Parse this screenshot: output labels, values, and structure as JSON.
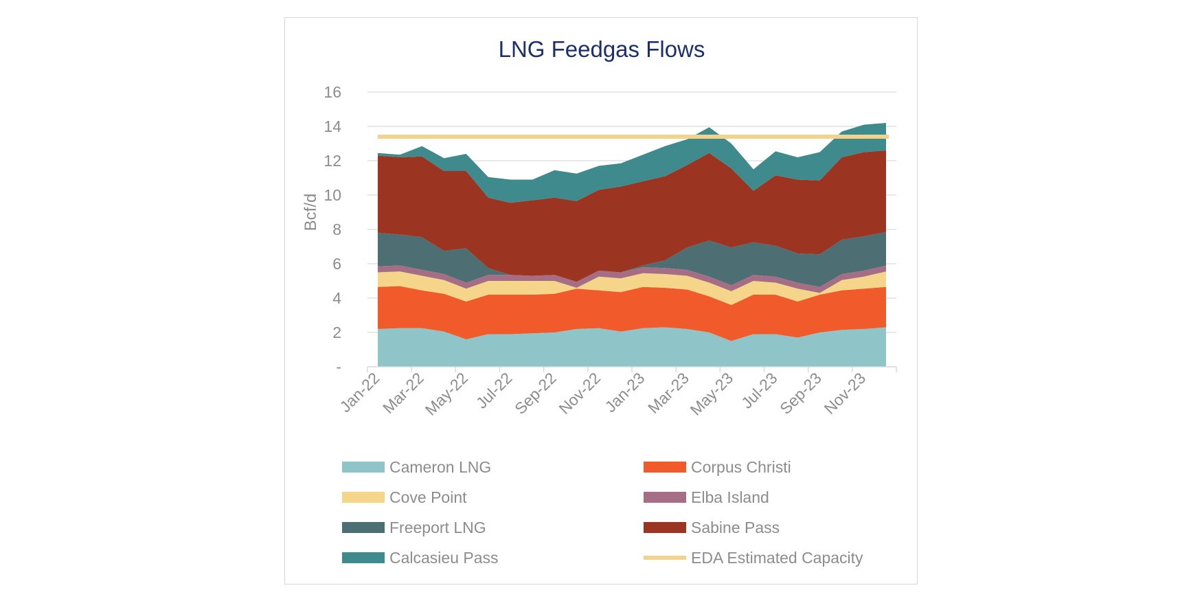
{
  "chart_data": {
    "type": "area",
    "title": "LNG Feedgas Flows",
    "ylabel": "Bcf/d",
    "xlabel": "",
    "ylim": [
      0,
      16
    ],
    "y_ticks": [
      {
        "value": 0,
        "label": "-"
      },
      {
        "value": 2,
        "label": "2"
      },
      {
        "value": 4,
        "label": "4"
      },
      {
        "value": 6,
        "label": "6"
      },
      {
        "value": 8,
        "label": "8"
      },
      {
        "value": 10,
        "label": "10"
      },
      {
        "value": 12,
        "label": "12"
      },
      {
        "value": 14,
        "label": "14"
      },
      {
        "value": 16,
        "label": "16"
      }
    ],
    "x": [
      "Jan-22",
      "Feb-22",
      "Mar-22",
      "Apr-22",
      "May-22",
      "Jun-22",
      "Jul-22",
      "Aug-22",
      "Sep-22",
      "Oct-22",
      "Nov-22",
      "Dec-22",
      "Jan-23",
      "Feb-23",
      "Mar-23",
      "Apr-23",
      "May-23",
      "Jun-23",
      "Jul-23",
      "Aug-23",
      "Sep-23",
      "Oct-23",
      "Nov-23",
      "Dec-23"
    ],
    "x_tick_labels": [
      "Jan-22",
      "Mar-22",
      "May-22",
      "Jul-22",
      "Sep-22",
      "Nov-22",
      "Jan-23",
      "Mar-23",
      "May-23",
      "Jul-23",
      "Sep-23",
      "Nov-23"
    ],
    "stacked": true,
    "grid": "horizontal",
    "legend_position": "bottom",
    "series": [
      {
        "name": "Cameron LNG",
        "color": "#8fc5c8",
        "values": [
          2.2,
          2.25,
          2.25,
          2.05,
          1.6,
          1.9,
          1.9,
          1.95,
          2.0,
          2.2,
          2.25,
          2.05,
          2.25,
          2.3,
          2.2,
          2.0,
          1.5,
          1.9,
          1.9,
          1.7,
          2.0,
          2.15,
          2.2,
          2.3
        ]
      },
      {
        "name": "Corpus Christi",
        "color": "#f15a2b",
        "values": [
          2.45,
          2.45,
          2.2,
          2.2,
          2.2,
          2.3,
          2.3,
          2.25,
          2.25,
          2.35,
          2.2,
          2.3,
          2.4,
          2.3,
          2.3,
          2.1,
          2.1,
          2.3,
          2.3,
          2.1,
          2.2,
          2.3,
          2.35,
          2.35
        ]
      },
      {
        "name": "Cove Point",
        "color": "#f5d58a",
        "values": [
          0.85,
          0.85,
          0.85,
          0.8,
          0.75,
          0.8,
          0.8,
          0.8,
          0.75,
          0.05,
          0.8,
          0.8,
          0.8,
          0.8,
          0.8,
          0.8,
          0.8,
          0.8,
          0.7,
          0.75,
          0.1,
          0.6,
          0.7,
          0.9
        ]
      },
      {
        "name": "Elba Island",
        "color": "#a66e85",
        "values": [
          0.35,
          0.35,
          0.35,
          0.35,
          0.35,
          0.35,
          0.35,
          0.3,
          0.35,
          0.35,
          0.35,
          0.35,
          0.35,
          0.35,
          0.35,
          0.35,
          0.35,
          0.35,
          0.35,
          0.35,
          0.35,
          0.35,
          0.35,
          0.35
        ]
      },
      {
        "name": "Freeport LNG",
        "color": "#4d6e72",
        "values": [
          1.95,
          1.8,
          1.9,
          1.35,
          2.0,
          0.4,
          0.0,
          0.0,
          0.0,
          0.0,
          0.0,
          0.0,
          0.1,
          0.45,
          1.3,
          2.1,
          2.2,
          1.9,
          1.8,
          1.7,
          1.9,
          2.0,
          2.0,
          1.95
        ]
      },
      {
        "name": "Sabine Pass",
        "color": "#9b3521",
        "values": [
          4.5,
          4.5,
          4.7,
          4.65,
          4.5,
          4.1,
          4.2,
          4.4,
          4.5,
          4.7,
          4.7,
          5.0,
          4.9,
          4.9,
          4.8,
          5.1,
          4.6,
          3.0,
          4.1,
          4.3,
          4.3,
          4.8,
          4.9,
          4.75
        ]
      },
      {
        "name": "Calcasieu Pass",
        "color": "#3e8a8c",
        "values": [
          0.15,
          0.15,
          0.6,
          0.75,
          1.0,
          1.2,
          1.35,
          1.2,
          1.6,
          1.6,
          1.4,
          1.35,
          1.55,
          1.75,
          1.5,
          1.5,
          1.45,
          1.25,
          1.4,
          1.3,
          1.65,
          1.5,
          1.6,
          1.6
        ]
      }
    ],
    "reference_line": {
      "name": "EDA Estimated Capacity",
      "value": 13.4,
      "color": "#f2d38b"
    }
  }
}
